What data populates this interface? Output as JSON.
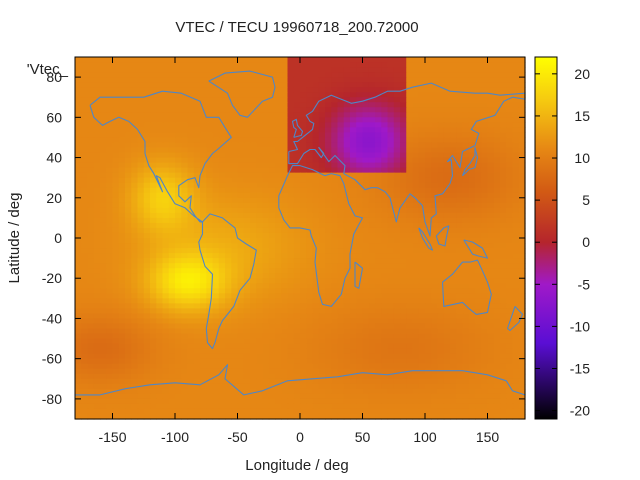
{
  "chart_data": {
    "type": "heatmap",
    "title": "VTEC / TECU 19960718_200.72000",
    "xlabel": "Longitude / deg",
    "ylabel": "Latitude / deg",
    "series_label": "'Vtec_",
    "xlim": [
      -180,
      180
    ],
    "ylim": [
      -90,
      90
    ],
    "x_ticks": [
      -150,
      -100,
      -50,
      0,
      50,
      100,
      150
    ],
    "y_ticks": [
      -80,
      -60,
      -40,
      -20,
      0,
      20,
      40,
      60,
      80
    ],
    "colorbar": {
      "range": [
        -21,
        22
      ],
      "ticks": [
        20,
        15,
        10,
        5,
        0,
        -5,
        -10,
        -15,
        -20
      ],
      "stops": [
        {
          "v": -21,
          "color": "#000000"
        },
        {
          "v": -12,
          "color": "#5a0ed4"
        },
        {
          "v": -5,
          "color": "#a019c8"
        },
        {
          "v": 0,
          "color": "#b5252c"
        },
        {
          "v": 6,
          "color": "#d25a14"
        },
        {
          "v": 11,
          "color": "#e68714"
        },
        {
          "v": 17,
          "color": "#f6cb10"
        },
        {
          "v": 22,
          "color": "#ffff00"
        }
      ]
    },
    "field": {
      "background_value": 11,
      "features": [
        {
          "name": "america-crest-north",
          "lon": -110,
          "lat": 20,
          "slon": 18,
          "slat": 12,
          "amp": 6
        },
        {
          "name": "america-crest-south",
          "lon": -90,
          "lat": -22,
          "slon": 22,
          "slat": 10,
          "amp": 8
        },
        {
          "name": "atlantic-band",
          "lon": -60,
          "lat": -5,
          "slon": 45,
          "slat": 18,
          "amp": 3
        },
        {
          "name": "south-pacific-low",
          "lon": -160,
          "lat": -55,
          "slon": 30,
          "slat": 12,
          "amp": -3
        },
        {
          "name": "asia-low",
          "lon": 120,
          "lat": 30,
          "slon": 40,
          "slat": 15,
          "amp": -3
        },
        {
          "name": "indian-ocean-low",
          "lon": 80,
          "lat": -55,
          "slon": 50,
          "slat": 15,
          "amp": -2
        }
      ],
      "anomaly_region": {
        "lon_range": [
          -10,
          85
        ],
        "lat_range": [
          33,
          90
        ],
        "edge_value": 1.5,
        "center_lon": 55,
        "center_lat": 48,
        "center_value": -7,
        "slon": 22,
        "slat": 13
      }
    },
    "coastline_color": "#4f86c6"
  }
}
